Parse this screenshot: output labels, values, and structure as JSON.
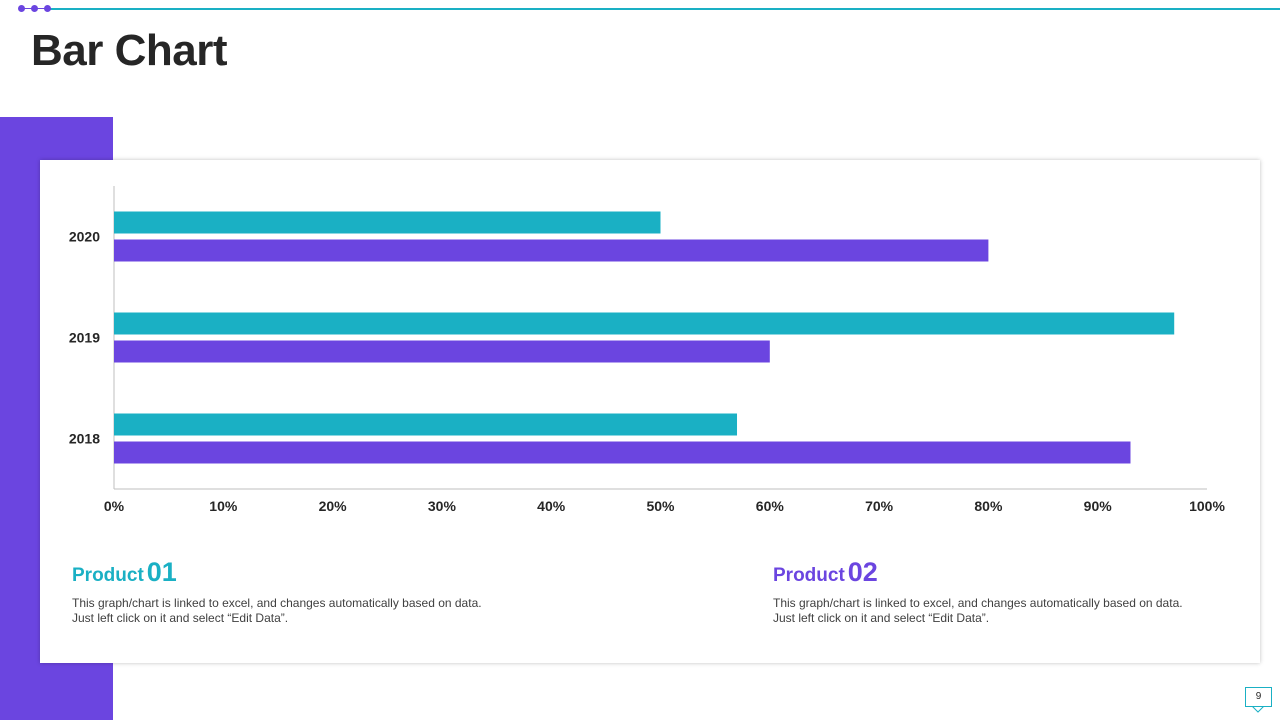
{
  "slide": {
    "title": "Bar Chart",
    "page_number": "9"
  },
  "colors": {
    "accent_purple": "#6b45e0",
    "accent_teal": "#1ab0c4",
    "text_dark": "#262626"
  },
  "chart_data": {
    "type": "bar",
    "orientation": "horizontal",
    "categories": [
      "2020",
      "2019",
      "2018"
    ],
    "series": [
      {
        "name": "Product 01",
        "color": "#1ab0c4",
        "values": [
          50,
          97,
          57
        ]
      },
      {
        "name": "Product 02",
        "color": "#6b45e0",
        "values": [
          80,
          60,
          93
        ]
      }
    ],
    "x_ticks": [
      "0%",
      "10%",
      "20%",
      "30%",
      "40%",
      "50%",
      "60%",
      "70%",
      "80%",
      "90%",
      "100%"
    ],
    "xlim": [
      0,
      100
    ],
    "grid": false,
    "title": "",
    "xlabel": "",
    "ylabel": ""
  },
  "products": [
    {
      "word": "Product",
      "number": "01",
      "color": "#1ab0c4",
      "description": "This graph/chart is linked to excel, and changes automatically based on data. Just left click on it and select “Edit Data”."
    },
    {
      "word": "Product",
      "number": "02",
      "color": "#6b45e0",
      "description": "This graph/chart is linked to excel, and changes automatically based on data. Just left click on it and select “Edit Data”."
    }
  ]
}
